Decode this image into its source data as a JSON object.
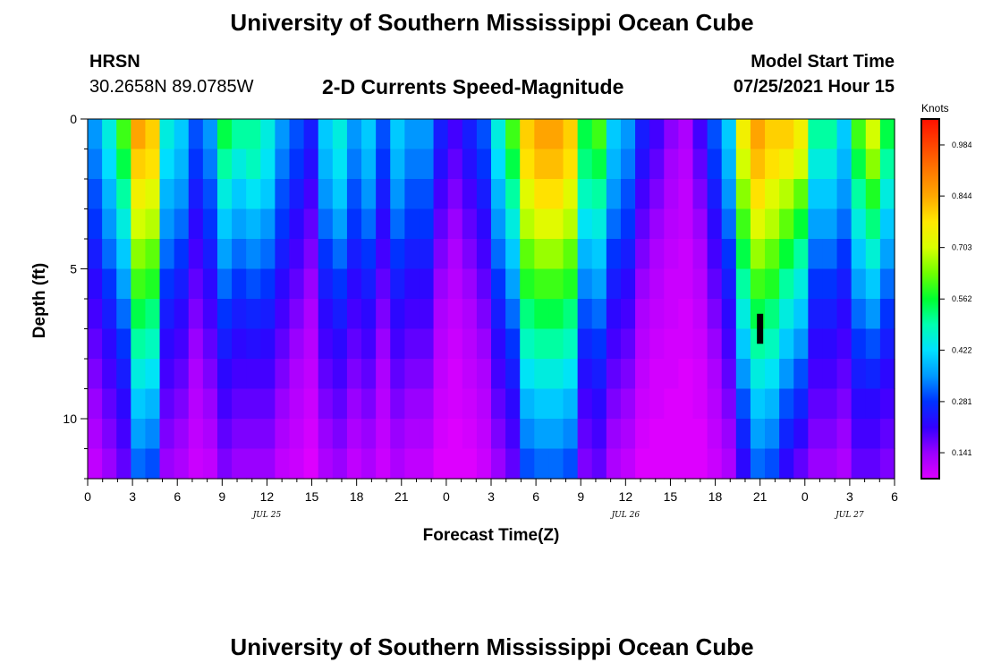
{
  "header": {
    "title": "University of Southern Mississippi Ocean Cube",
    "station": "HRSN",
    "coords": "30.2658N  89.0785W",
    "subtitle": "2-D Currents Speed-Magnitude",
    "model_start_label": "Model Start Time",
    "model_start_value": "07/25/2021 Hour 15"
  },
  "footer": {
    "title": "University of Southern Mississippi Ocean Cube"
  },
  "colorbar": {
    "units": "Knots",
    "ticks": [
      "0.984",
      "0.844",
      "0.703",
      "0.562",
      "0.422",
      "0.281",
      "0.141"
    ],
    "tick_values": [
      0.984,
      0.844,
      0.703,
      0.562,
      0.422,
      0.281,
      0.141
    ],
    "range": [
      0.07,
      1.055
    ],
    "colors": [
      "#dd00ff",
      "#9a00ff",
      "#3300ff",
      "#0033ff",
      "#0099ff",
      "#00e0ff",
      "#00ffb0",
      "#00ff30",
      "#70ff00",
      "#d8ff00",
      "#ffe800",
      "#ffa800",
      "#ff7800",
      "#ff4400",
      "#ff1000"
    ]
  },
  "chart_data": {
    "type": "heatmap",
    "title": "2-D Currents Speed-Magnitude",
    "xlabel": "Forecast Time(Z)",
    "ylabel": "Depth (ft)",
    "x_ticks": [
      "0",
      "3",
      "6",
      "9",
      "12",
      "15",
      "18",
      "21",
      "0",
      "3",
      "6",
      "9",
      "12",
      "15",
      "18",
      "21",
      "0",
      "3",
      "6"
    ],
    "x_range_hours": [
      0,
      54
    ],
    "day_labels": [
      {
        "label": "JUL 25",
        "hour": 12
      },
      {
        "label": "JUL 26",
        "hour": 36
      },
      {
        "label": "JUL 27",
        "hour": 51
      }
    ],
    "y_ticks": [
      "0",
      "5",
      "10"
    ],
    "y_tick_values": [
      0,
      5,
      10
    ],
    "y_range_ft": [
      0,
      12
    ],
    "depth_levels_ft": [
      0,
      1,
      2,
      3,
      4,
      5,
      6,
      7,
      8,
      9,
      10,
      11
    ],
    "units": "Knots",
    "speed_knots": [
      [
        0.35,
        0.45,
        0.6,
        0.85,
        0.8,
        0.45,
        0.4,
        0.3,
        0.35,
        0.55,
        0.5,
        0.5,
        0.45,
        0.35,
        0.3,
        0.25,
        0.4,
        0.45,
        0.35,
        0.4,
        0.3,
        0.4,
        0.35,
        0.35,
        0.25,
        0.2,
        0.25,
        0.3,
        0.45,
        0.6,
        0.8,
        0.85,
        0.85,
        0.8,
        0.55,
        0.6,
        0.4,
        0.35,
        0.25,
        0.2,
        0.15,
        0.12,
        0.2,
        0.3,
        0.4,
        0.75,
        0.85,
        0.8,
        0.8,
        0.75,
        0.5,
        0.5,
        0.4,
        0.6,
        0.7,
        0.55
      ],
      [
        0.33,
        0.42,
        0.55,
        0.8,
        0.78,
        0.42,
        0.38,
        0.28,
        0.33,
        0.5,
        0.45,
        0.48,
        0.43,
        0.33,
        0.28,
        0.23,
        0.38,
        0.43,
        0.33,
        0.38,
        0.28,
        0.38,
        0.33,
        0.33,
        0.23,
        0.18,
        0.23,
        0.28,
        0.42,
        0.55,
        0.78,
        0.82,
        0.82,
        0.78,
        0.52,
        0.55,
        0.38,
        0.33,
        0.23,
        0.18,
        0.13,
        0.11,
        0.18,
        0.28,
        0.38,
        0.7,
        0.82,
        0.78,
        0.75,
        0.7,
        0.45,
        0.45,
        0.38,
        0.55,
        0.65,
        0.5
      ],
      [
        0.3,
        0.38,
        0.5,
        0.75,
        0.72,
        0.38,
        0.35,
        0.25,
        0.3,
        0.45,
        0.4,
        0.43,
        0.4,
        0.3,
        0.25,
        0.2,
        0.35,
        0.4,
        0.3,
        0.35,
        0.25,
        0.35,
        0.3,
        0.3,
        0.2,
        0.16,
        0.2,
        0.25,
        0.38,
        0.5,
        0.72,
        0.78,
        0.78,
        0.72,
        0.48,
        0.5,
        0.35,
        0.3,
        0.2,
        0.16,
        0.12,
        0.1,
        0.16,
        0.25,
        0.35,
        0.65,
        0.78,
        0.72,
        0.68,
        0.62,
        0.4,
        0.4,
        0.35,
        0.5,
        0.58,
        0.45
      ],
      [
        0.28,
        0.35,
        0.45,
        0.7,
        0.68,
        0.35,
        0.32,
        0.22,
        0.28,
        0.4,
        0.36,
        0.38,
        0.35,
        0.28,
        0.22,
        0.18,
        0.32,
        0.36,
        0.28,
        0.32,
        0.22,
        0.32,
        0.28,
        0.28,
        0.18,
        0.14,
        0.18,
        0.22,
        0.35,
        0.45,
        0.68,
        0.72,
        0.72,
        0.68,
        0.43,
        0.45,
        0.32,
        0.28,
        0.18,
        0.14,
        0.11,
        0.1,
        0.14,
        0.22,
        0.32,
        0.6,
        0.72,
        0.68,
        0.62,
        0.56,
        0.36,
        0.36,
        0.32,
        0.45,
        0.52,
        0.4
      ],
      [
        0.25,
        0.32,
        0.4,
        0.65,
        0.62,
        0.32,
        0.28,
        0.2,
        0.25,
        0.36,
        0.32,
        0.34,
        0.32,
        0.25,
        0.2,
        0.16,
        0.28,
        0.32,
        0.25,
        0.28,
        0.2,
        0.28,
        0.25,
        0.25,
        0.16,
        0.12,
        0.16,
        0.2,
        0.32,
        0.4,
        0.62,
        0.66,
        0.66,
        0.62,
        0.38,
        0.4,
        0.28,
        0.25,
        0.16,
        0.12,
        0.1,
        0.09,
        0.12,
        0.2,
        0.28,
        0.55,
        0.66,
        0.62,
        0.56,
        0.5,
        0.32,
        0.32,
        0.28,
        0.4,
        0.46,
        0.36
      ],
      [
        0.22,
        0.28,
        0.36,
        0.6,
        0.58,
        0.28,
        0.25,
        0.18,
        0.22,
        0.32,
        0.28,
        0.3,
        0.28,
        0.22,
        0.18,
        0.14,
        0.25,
        0.28,
        0.22,
        0.25,
        0.18,
        0.25,
        0.22,
        0.22,
        0.14,
        0.11,
        0.14,
        0.18,
        0.28,
        0.36,
        0.58,
        0.6,
        0.6,
        0.58,
        0.34,
        0.36,
        0.25,
        0.22,
        0.14,
        0.11,
        0.09,
        0.09,
        0.11,
        0.18,
        0.25,
        0.5,
        0.6,
        0.58,
        0.5,
        0.45,
        0.28,
        0.28,
        0.25,
        0.36,
        0.4,
        0.32
      ],
      [
        0.2,
        0.25,
        0.32,
        0.55,
        0.52,
        0.25,
        0.22,
        0.16,
        0.2,
        0.28,
        0.25,
        0.26,
        0.25,
        0.2,
        0.16,
        0.12,
        0.22,
        0.25,
        0.2,
        0.22,
        0.16,
        0.22,
        0.2,
        0.2,
        0.12,
        0.1,
        0.12,
        0.16,
        0.25,
        0.32,
        0.52,
        0.55,
        0.55,
        0.52,
        0.3,
        0.32,
        0.22,
        0.2,
        0.12,
        0.1,
        0.09,
        0.08,
        0.1,
        0.16,
        0.22,
        0.45,
        0.55,
        0.52,
        0.45,
        0.4,
        0.25,
        0.25,
        0.22,
        0.32,
        0.35,
        0.28
      ],
      [
        0.18,
        0.22,
        0.28,
        0.5,
        0.48,
        0.22,
        0.2,
        0.14,
        0.18,
        0.25,
        0.22,
        0.23,
        0.22,
        0.18,
        0.14,
        0.11,
        0.2,
        0.22,
        0.18,
        0.2,
        0.14,
        0.2,
        0.18,
        0.18,
        0.11,
        0.09,
        0.11,
        0.14,
        0.22,
        0.28,
        0.48,
        0.5,
        0.5,
        0.48,
        0.26,
        0.28,
        0.2,
        0.18,
        0.11,
        0.09,
        0.08,
        0.08,
        0.09,
        0.14,
        0.2,
        0.4,
        0.5,
        0.48,
        0.4,
        0.35,
        0.22,
        0.22,
        0.2,
        0.28,
        0.3,
        0.25
      ],
      [
        0.16,
        0.2,
        0.25,
        0.45,
        0.43,
        0.2,
        0.18,
        0.12,
        0.16,
        0.22,
        0.2,
        0.2,
        0.2,
        0.16,
        0.12,
        0.1,
        0.18,
        0.2,
        0.16,
        0.18,
        0.12,
        0.18,
        0.16,
        0.16,
        0.1,
        0.08,
        0.1,
        0.12,
        0.2,
        0.25,
        0.43,
        0.45,
        0.45,
        0.43,
        0.23,
        0.25,
        0.18,
        0.16,
        0.1,
        0.08,
        0.08,
        0.07,
        0.08,
        0.12,
        0.18,
        0.35,
        0.45,
        0.43,
        0.35,
        0.3,
        0.2,
        0.2,
        0.18,
        0.25,
        0.26,
        0.22
      ],
      [
        0.14,
        0.18,
        0.22,
        0.4,
        0.38,
        0.18,
        0.16,
        0.11,
        0.14,
        0.2,
        0.18,
        0.18,
        0.18,
        0.14,
        0.11,
        0.09,
        0.16,
        0.18,
        0.14,
        0.16,
        0.11,
        0.16,
        0.14,
        0.14,
        0.09,
        0.08,
        0.09,
        0.11,
        0.18,
        0.22,
        0.38,
        0.4,
        0.4,
        0.38,
        0.2,
        0.22,
        0.16,
        0.14,
        0.09,
        0.08,
        0.07,
        0.07,
        0.08,
        0.11,
        0.16,
        0.3,
        0.4,
        0.38,
        0.3,
        0.26,
        0.18,
        0.18,
        0.16,
        0.22,
        0.22,
        0.2
      ],
      [
        0.12,
        0.16,
        0.2,
        0.36,
        0.34,
        0.16,
        0.14,
        0.1,
        0.12,
        0.18,
        0.16,
        0.16,
        0.16,
        0.12,
        0.1,
        0.08,
        0.14,
        0.16,
        0.12,
        0.14,
        0.1,
        0.14,
        0.12,
        0.12,
        0.08,
        0.07,
        0.08,
        0.1,
        0.16,
        0.2,
        0.34,
        0.36,
        0.36,
        0.34,
        0.18,
        0.2,
        0.14,
        0.12,
        0.08,
        0.07,
        0.07,
        0.07,
        0.07,
        0.1,
        0.14,
        0.26,
        0.36,
        0.34,
        0.26,
        0.22,
        0.16,
        0.16,
        0.14,
        0.2,
        0.2,
        0.18
      ],
      [
        0.1,
        0.14,
        0.18,
        0.32,
        0.3,
        0.14,
        0.12,
        0.09,
        0.1,
        0.16,
        0.14,
        0.14,
        0.14,
        0.1,
        0.09,
        0.07,
        0.12,
        0.14,
        0.1,
        0.12,
        0.09,
        0.12,
        0.1,
        0.1,
        0.07,
        0.07,
        0.07,
        0.09,
        0.14,
        0.18,
        0.3,
        0.32,
        0.32,
        0.3,
        0.16,
        0.18,
        0.12,
        0.1,
        0.07,
        0.07,
        0.07,
        0.07,
        0.07,
        0.09,
        0.12,
        0.22,
        0.32,
        0.3,
        0.22,
        0.18,
        0.14,
        0.14,
        0.12,
        0.18,
        0.18,
        0.16
      ]
    ],
    "marker": {
      "hour": 45,
      "depth_ft": [
        6.5,
        7.5
      ]
    }
  }
}
